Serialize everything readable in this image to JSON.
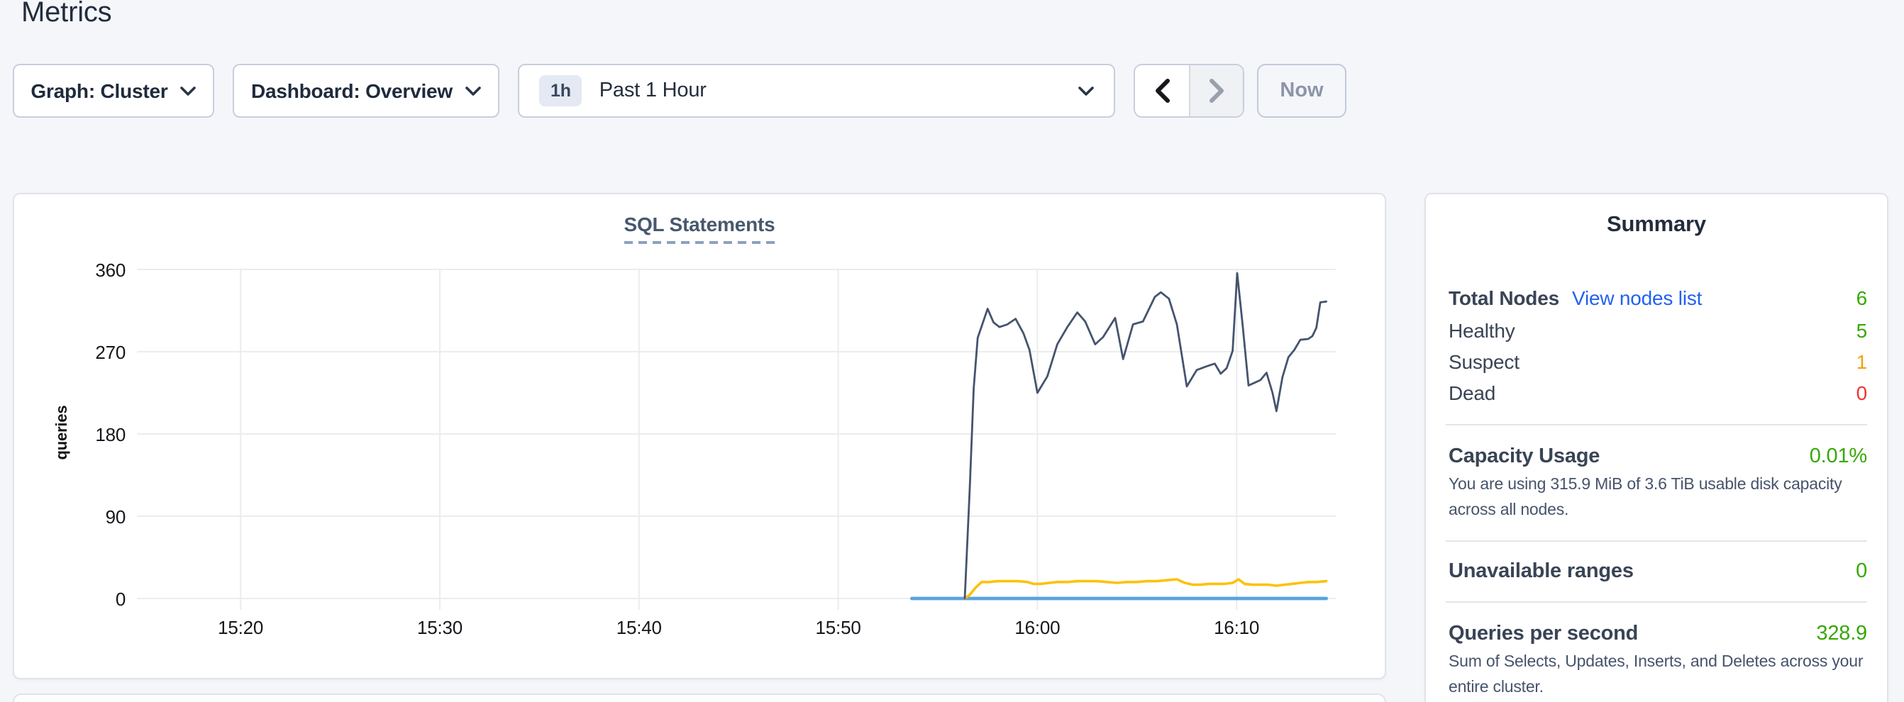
{
  "page": {
    "title": "Metrics",
    "background": "#f4f6fa"
  },
  "toolbar": {
    "graph_select": {
      "label": "Graph: Cluster"
    },
    "dashboard_select": {
      "label": "Dashboard: Overview"
    },
    "time_select": {
      "badge": "1h",
      "label": "Past 1 Hour"
    },
    "prev_button": {
      "icon": "chevron-left-icon",
      "enabled": true
    },
    "next_button": {
      "icon": "chevron-right-icon",
      "enabled": false
    },
    "now_button": {
      "label": "Now",
      "enabled": false
    }
  },
  "chart_data": {
    "type": "line",
    "title": "SQL Statements",
    "ylabel": "queries",
    "xlabel": "",
    "grid": true,
    "legend": "none",
    "ylim": [
      0,
      360
    ],
    "y_ticks": [
      0,
      90,
      180,
      270,
      360
    ],
    "x_ticks": [
      "15:20",
      "15:30",
      "15:40",
      "15:50",
      "16:00",
      "16:10"
    ],
    "x_domain_minutes_after_1500": [
      14.8,
      75.2
    ],
    "series": [
      {
        "name": "navy-line",
        "color": "#45546e",
        "width": 1.4,
        "points": [
          [
            56.35,
            0
          ],
          [
            56.6,
            120
          ],
          [
            56.8,
            230
          ],
          [
            57.0,
            285
          ],
          [
            57.5,
            317
          ],
          [
            57.8,
            302
          ],
          [
            58.1,
            297
          ],
          [
            58.5,
            300
          ],
          [
            58.9,
            306
          ],
          [
            59.3,
            290
          ],
          [
            59.6,
            272
          ],
          [
            60.0,
            225
          ],
          [
            60.5,
            243
          ],
          [
            61.0,
            278
          ],
          [
            61.5,
            297
          ],
          [
            62.0,
            313
          ],
          [
            62.4,
            303
          ],
          [
            62.9,
            278
          ],
          [
            63.3,
            286
          ],
          [
            63.9,
            307
          ],
          [
            64.3,
            262
          ],
          [
            64.8,
            300
          ],
          [
            65.3,
            303
          ],
          [
            65.9,
            330
          ],
          [
            66.2,
            335
          ],
          [
            66.6,
            328
          ],
          [
            67.0,
            300
          ],
          [
            67.5,
            232
          ],
          [
            68.0,
            250
          ],
          [
            68.5,
            254
          ],
          [
            68.9,
            257
          ],
          [
            69.2,
            246
          ],
          [
            69.5,
            252
          ],
          [
            69.8,
            271
          ],
          [
            70.03,
            356
          ],
          [
            70.3,
            300
          ],
          [
            70.6,
            233
          ],
          [
            70.9,
            236
          ],
          [
            71.2,
            239
          ],
          [
            71.5,
            247
          ],
          [
            71.8,
            225
          ],
          [
            72.0,
            205
          ],
          [
            72.3,
            242
          ],
          [
            72.6,
            264
          ],
          [
            72.9,
            272
          ],
          [
            73.2,
            283
          ],
          [
            73.6,
            284
          ],
          [
            73.8,
            287
          ],
          [
            74.0,
            296
          ],
          [
            74.2,
            324
          ],
          [
            74.5,
            325
          ]
        ]
      },
      {
        "name": "yellow-line",
        "color": "#fdc108",
        "width": 1.8,
        "points": [
          [
            56.35,
            0
          ],
          [
            56.6,
            4
          ],
          [
            56.9,
            12
          ],
          [
            57.2,
            18
          ],
          [
            57.6,
            18
          ],
          [
            58.0,
            19
          ],
          [
            58.5,
            19
          ],
          [
            59.0,
            19
          ],
          [
            59.5,
            18
          ],
          [
            59.8,
            16
          ],
          [
            60.2,
            16
          ],
          [
            60.6,
            17
          ],
          [
            61.0,
            18
          ],
          [
            61.5,
            18
          ],
          [
            62.0,
            19
          ],
          [
            62.5,
            19
          ],
          [
            63.0,
            19
          ],
          [
            63.5,
            18
          ],
          [
            64.0,
            17
          ],
          [
            64.5,
            18
          ],
          [
            65.0,
            18
          ],
          [
            65.5,
            19
          ],
          [
            66.0,
            19
          ],
          [
            66.5,
            20
          ],
          [
            67.0,
            21
          ],
          [
            67.4,
            17
          ],
          [
            67.8,
            15
          ],
          [
            68.2,
            15
          ],
          [
            68.6,
            16
          ],
          [
            69.0,
            16
          ],
          [
            69.4,
            16
          ],
          [
            69.8,
            17
          ],
          [
            70.1,
            21
          ],
          [
            70.4,
            16
          ],
          [
            70.8,
            15
          ],
          [
            71.2,
            15
          ],
          [
            71.6,
            15
          ],
          [
            72.0,
            14
          ],
          [
            72.4,
            15
          ],
          [
            72.8,
            16
          ],
          [
            73.2,
            17
          ],
          [
            73.6,
            18
          ],
          [
            74.0,
            18
          ],
          [
            74.5,
            19
          ]
        ]
      },
      {
        "name": "blue-line",
        "color": "#59a3e0",
        "width": 2.4,
        "points": [
          [
            53.7,
            0
          ],
          [
            74.5,
            0
          ]
        ]
      }
    ]
  },
  "summary": {
    "title": "Summary",
    "rows": [
      {
        "label": "Total Nodes",
        "link": "View nodes list",
        "value": "6",
        "value_color": "#37a806"
      },
      {
        "label": "Healthy",
        "value": "5",
        "color": "#37a806"
      },
      {
        "label": "Suspect",
        "value": "1",
        "color": "#f2a20a"
      },
      {
        "label": "Dead",
        "value": "0",
        "color": "#ef3434"
      }
    ],
    "sections": [
      {
        "label": "Capacity Usage",
        "value": "0.01%",
        "value_color": "#37a806",
        "description": "You are using 315.9 MiB of 3.6 TiB usable disk capacity across all nodes."
      },
      {
        "label": "Unavailable ranges",
        "value": "0",
        "value_color": "#37a806",
        "description": ""
      },
      {
        "label": "Queries per second",
        "value": "328.9",
        "value_color": "#37a806",
        "description": "Sum of Selects, Updates, Inserts, and Deletes across your entire cluster."
      }
    ]
  },
  "colors": {
    "accent_link": "#2361f0",
    "healthy_green": "#37a806",
    "suspect_orange": "#f2a20a",
    "dead_red": "#ef3434",
    "navy_series": "#45546e",
    "yellow_series": "#fdc108",
    "blue_series": "#59a3e0",
    "gridline": "#ececec",
    "card_border": "#e1e3e9",
    "page_bg": "#f4f6fa",
    "dark_text": "#242d3d"
  }
}
